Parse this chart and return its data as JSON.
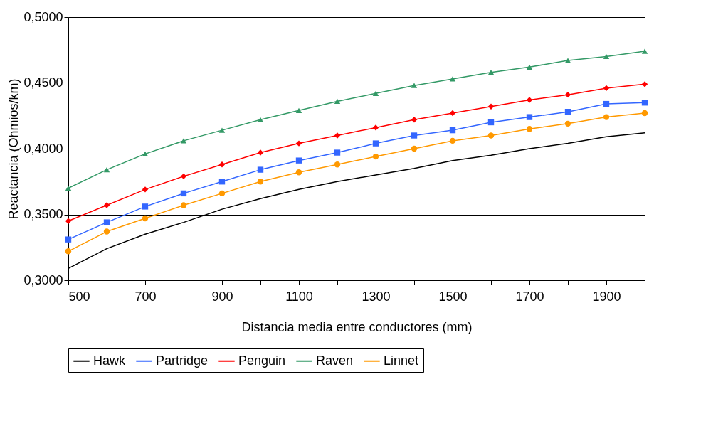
{
  "chart_data": {
    "type": "line",
    "xlabel": "Distancia media entre conductores (mm)",
    "ylabel": "Reactancia (Ohmios/km)",
    "x": [
      500,
      600,
      700,
      800,
      900,
      1000,
      1100,
      1200,
      1300,
      1400,
      1500,
      1600,
      1700,
      1800,
      1900,
      2000
    ],
    "series": [
      {
        "name": "Hawk",
        "color": "#000000",
        "marker": "none",
        "values": [
          0.309,
          0.324,
          0.335,
          0.344,
          0.354,
          0.362,
          0.369,
          0.375,
          0.38,
          0.385,
          0.391,
          0.395,
          0.4,
          0.404,
          0.409,
          0.412
        ]
      },
      {
        "name": "Partridge",
        "color": "#3366ff",
        "marker": "square",
        "values": [
          0.331,
          0.344,
          0.356,
          0.366,
          0.375,
          0.384,
          0.391,
          0.397,
          0.404,
          0.41,
          0.414,
          0.42,
          0.424,
          0.428,
          0.434,
          0.435
        ]
      },
      {
        "name": "Penguin",
        "color": "#ff0000",
        "marker": "diamond",
        "values": [
          0.345,
          0.357,
          0.369,
          0.379,
          0.388,
          0.397,
          0.404,
          0.41,
          0.416,
          0.422,
          0.427,
          0.432,
          0.437,
          0.441,
          0.446,
          0.449
        ]
      },
      {
        "name": "Raven",
        "color": "#339966",
        "marker": "triangle",
        "values": [
          0.37,
          0.384,
          0.396,
          0.406,
          0.414,
          0.422,
          0.429,
          0.436,
          0.442,
          0.448,
          0.453,
          0.458,
          0.462,
          0.467,
          0.47,
          0.474
        ]
      },
      {
        "name": "Linnet",
        "color": "#ff9900",
        "marker": "circle",
        "values": [
          0.322,
          0.337,
          0.347,
          0.357,
          0.366,
          0.375,
          0.382,
          0.388,
          0.394,
          0.4,
          0.406,
          0.41,
          0.415,
          0.419,
          0.424,
          0.427
        ]
      }
    ],
    "xlim": [
      500,
      2000
    ],
    "xticks": [
      500,
      {
        "value": 600,
        "label": null
      },
      700,
      {
        "value": 800,
        "label": null
      },
      900,
      {
        "value": 1000,
        "label": null
      },
      1100,
      {
        "value": 1200,
        "label": null
      },
      1300,
      {
        "value": 1400,
        "label": null
      },
      1500,
      {
        "value": 1600,
        "label": null
      },
      1700,
      {
        "value": 1800,
        "label": null
      },
      1900,
      {
        "value": 2000,
        "label": null
      }
    ],
    "ylim": [
      0.3,
      0.5
    ],
    "yticks": [
      {
        "value": 0.3,
        "label": "0,3000"
      },
      {
        "value": 0.35,
        "label": "0,3500"
      },
      {
        "value": 0.4,
        "label": "0,4000"
      },
      {
        "value": 0.45,
        "label": "0,4500"
      },
      {
        "value": 0.5,
        "label": "0,5000"
      }
    ],
    "grid": "y",
    "legend": "bottom",
    "line_style": "solid"
  }
}
